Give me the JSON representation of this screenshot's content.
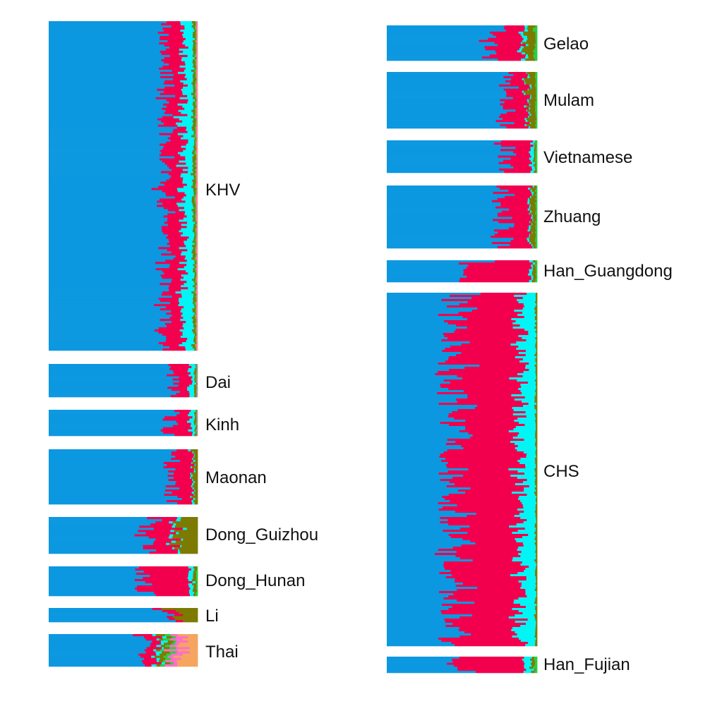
{
  "chart_data": {
    "type": "bar",
    "orientation": "horizontal-stacked",
    "legend": "none",
    "grid": false,
    "components": [
      "K1",
      "K2",
      "K3",
      "K4",
      "K5",
      "K6",
      "K7",
      "K8"
    ],
    "colors": {
      "K1": "#0C98E0",
      "K2": "#F2004E",
      "K3": "#00F5F5",
      "K4": "#7C7A00",
      "K5": "#2ECC40",
      "K6": "#FF6EC7",
      "K7": "#F5A55F",
      "K8": "#8B5CF6"
    },
    "populations": [
      {
        "label": "KHV",
        "column": "left",
        "mean": [
          0.78,
          0.12,
          0.07,
          0.015,
          0.006,
          0.006,
          0.003,
          0.0
        ]
      },
      {
        "label": "Dai",
        "column": "left",
        "mean": [
          0.84,
          0.11,
          0.03,
          0.01,
          0.006,
          0.004,
          0.0,
          0.0
        ]
      },
      {
        "label": "Kinh",
        "column": "left",
        "mean": [
          0.81,
          0.14,
          0.03,
          0.01,
          0.006,
          0.004,
          0.0,
          0.0
        ]
      },
      {
        "label": "Maonan",
        "column": "left",
        "mean": [
          0.82,
          0.14,
          0.01,
          0.03,
          0.0,
          0.0,
          0.0,
          0.0
        ]
      },
      {
        "label": "Dong_Guizhou",
        "column": "left",
        "mean": [
          0.66,
          0.18,
          0.02,
          0.14,
          0.0,
          0.0,
          0.0,
          0.0
        ]
      },
      {
        "label": "Dong_Hunan",
        "column": "left",
        "mean": [
          0.66,
          0.28,
          0.03,
          0.02,
          0.01,
          0.0,
          0.0,
          0.0
        ]
      },
      {
        "label": "Li",
        "column": "left",
        "mean": [
          0.77,
          0.06,
          0.0,
          0.17,
          0.0,
          0.0,
          0.0,
          0.0
        ]
      },
      {
        "label": "Thai",
        "column": "left",
        "mean": [
          0.65,
          0.09,
          0.03,
          0.04,
          0.03,
          0.06,
          0.1,
          0.0
        ]
      },
      {
        "label": "Gelao",
        "column": "right",
        "mean": [
          0.7,
          0.2,
          0.02,
          0.06,
          0.02,
          0.0,
          0.0,
          0.0
        ]
      },
      {
        "label": "Mulam",
        "column": "right",
        "mean": [
          0.78,
          0.15,
          0.01,
          0.05,
          0.01,
          0.0,
          0.0,
          0.0
        ]
      },
      {
        "label": "Vietnamese",
        "column": "right",
        "mean": [
          0.78,
          0.18,
          0.02,
          0.01,
          0.01,
          0.0,
          0.0,
          0.0
        ]
      },
      {
        "label": "Zhuang",
        "column": "right",
        "mean": [
          0.77,
          0.18,
          0.01,
          0.03,
          0.01,
          0.0,
          0.0,
          0.0
        ]
      },
      {
        "label": "Han_Guangdong",
        "column": "right",
        "mean": [
          0.57,
          0.38,
          0.02,
          0.02,
          0.01,
          0.0,
          0.0,
          0.0
        ]
      },
      {
        "label": "CHS",
        "column": "right",
        "mean": [
          0.44,
          0.45,
          0.1,
          0.01,
          0.0,
          0.0,
          0.0,
          0.0
        ]
      },
      {
        "label": "Han_Fujian",
        "column": "right",
        "mean": [
          0.47,
          0.44,
          0.05,
          0.02,
          0.02,
          0.0,
          0.0,
          0.0
        ]
      }
    ]
  }
}
